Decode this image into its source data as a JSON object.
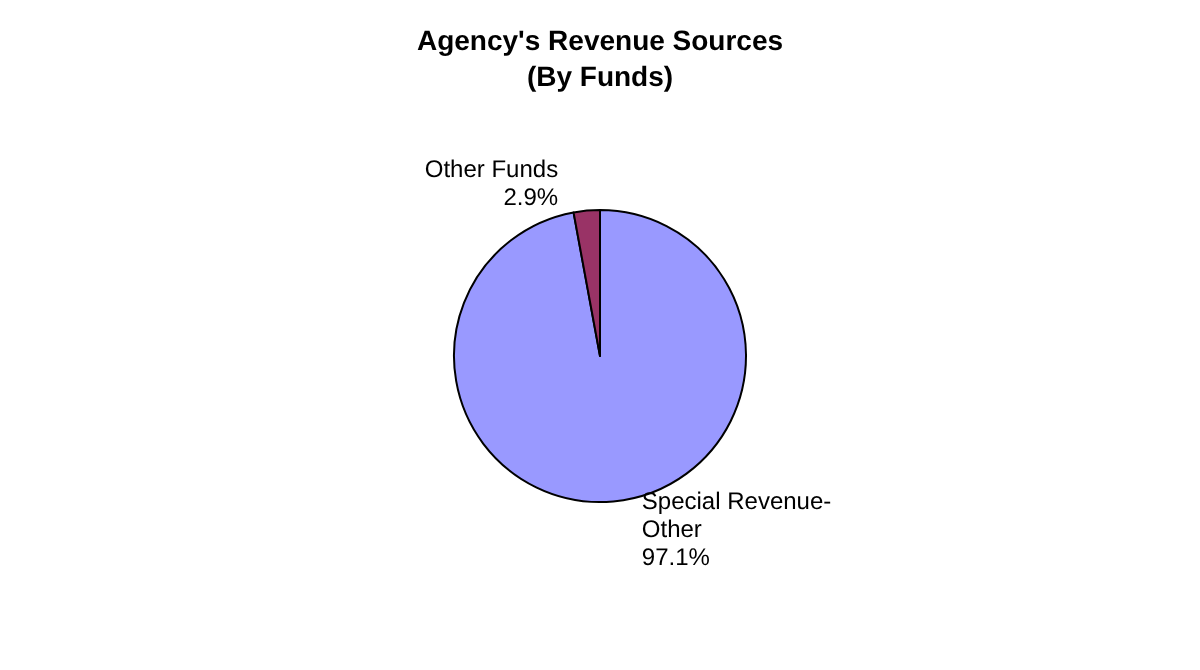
{
  "chart_data": {
    "type": "pie",
    "title": "Agency's Revenue Sources",
    "subtitle": "(By Funds)",
    "categories": [
      "Special Revenue-\nOther",
      "Other Funds"
    ],
    "values": [
      97.1,
      2.9
    ],
    "colors": [
      "#9999ff",
      "#993366"
    ],
    "value_labels": [
      "97.1%",
      "2.9%"
    ],
    "legend": false
  }
}
